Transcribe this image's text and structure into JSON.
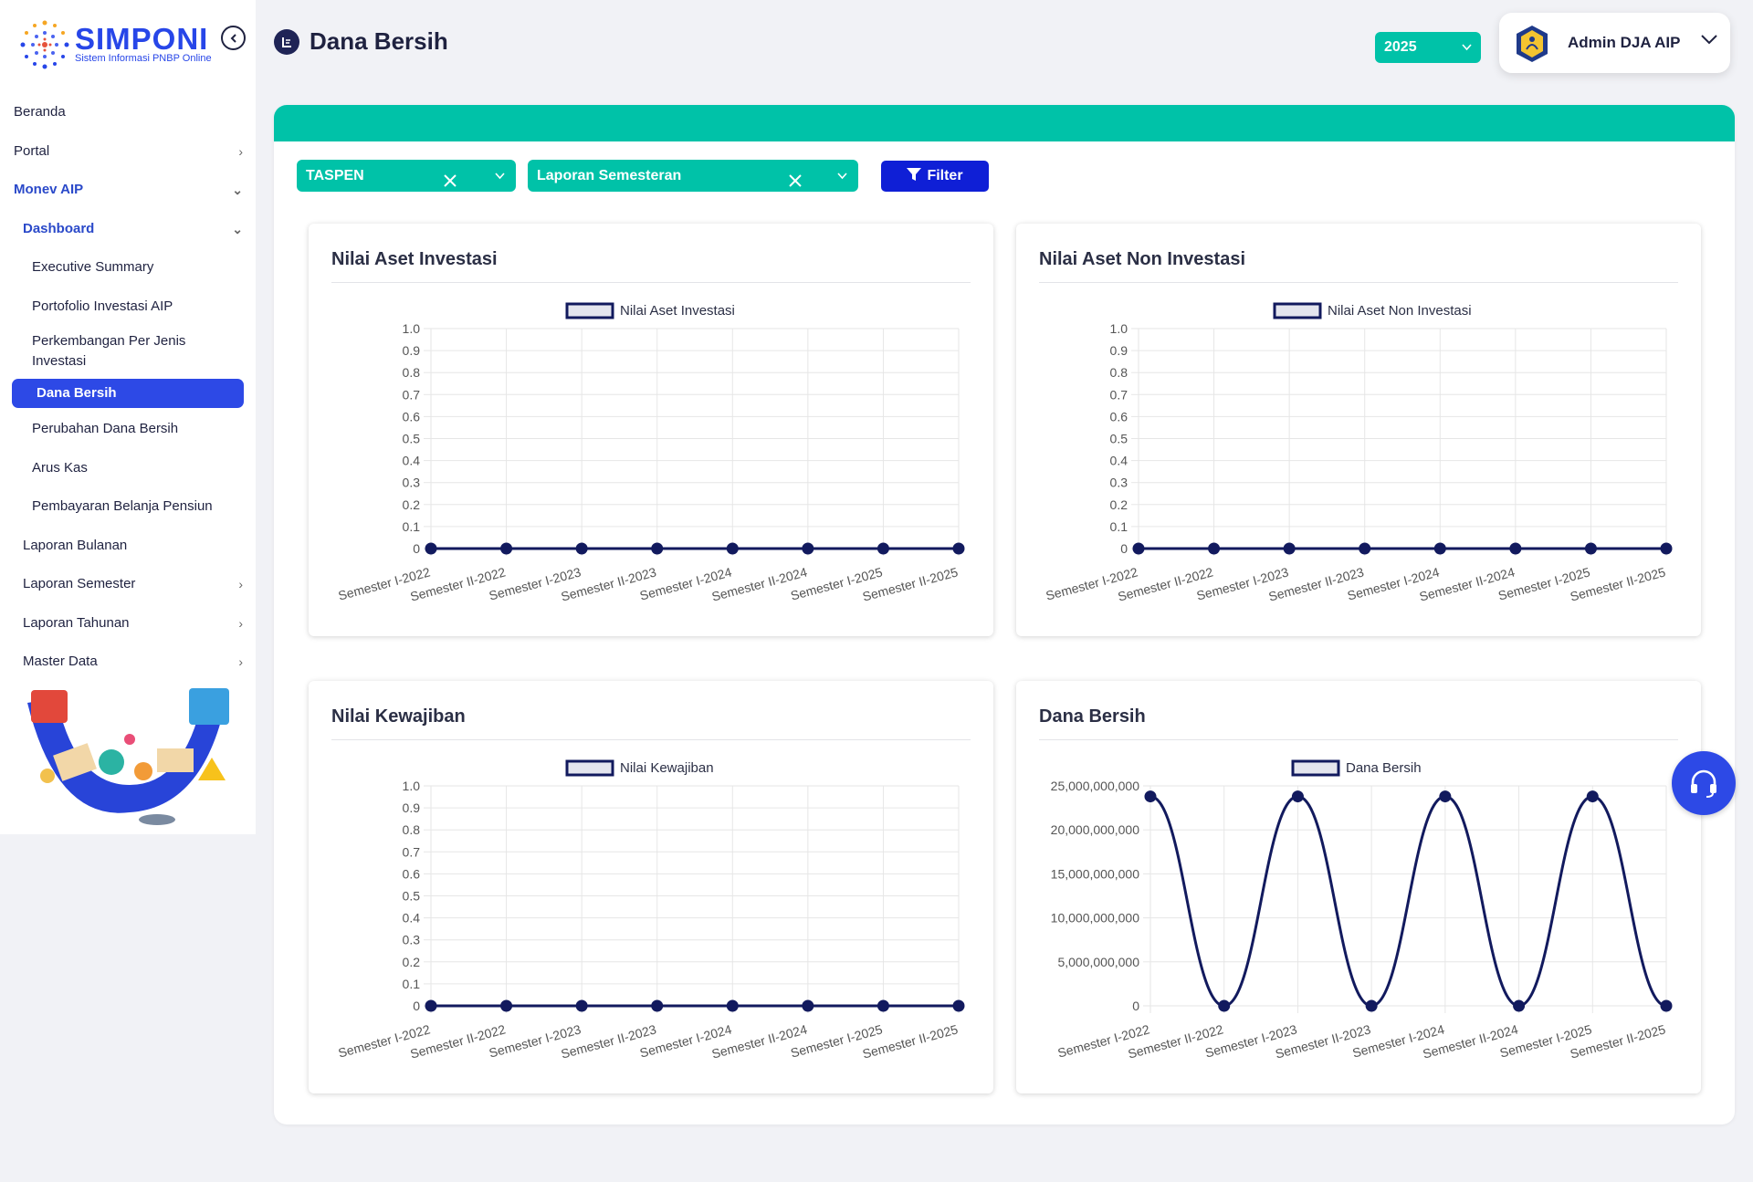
{
  "app": {
    "logo_title": "SIMPONI",
    "logo_subtitle": "Sistem Informasi PNBP Online"
  },
  "sidebar": {
    "items": [
      {
        "label": "Beranda"
      },
      {
        "label": "Portal"
      },
      {
        "label": "Monev AIP"
      },
      {
        "label": "Dashboard"
      },
      {
        "label": "Executive Summary"
      },
      {
        "label": "Portofolio Investasi AIP"
      },
      {
        "label": "Perkembangan Per Jenis Investasi"
      },
      {
        "label": "Dana Bersih"
      },
      {
        "label": "Perubahan Dana Bersih"
      },
      {
        "label": "Arus Kas"
      },
      {
        "label": "Pembayaran Belanja Pensiun"
      },
      {
        "label": "Laporan Bulanan"
      },
      {
        "label": "Laporan Semester"
      },
      {
        "label": "Laporan Tahunan"
      },
      {
        "label": "Master Data"
      }
    ]
  },
  "header": {
    "title": "Dana Bersih",
    "year": "2025",
    "user_name": "Admin DJA AIP"
  },
  "filters": {
    "entity": "TASPEN",
    "report_type": "Laporan Semesteran",
    "filter_label": "Filter"
  },
  "colors": {
    "accent": "#00c2a8",
    "primary": "#2d49e6",
    "line": "#121a5e"
  },
  "chart_data": [
    {
      "type": "line",
      "title": "Nilai Aset Investasi",
      "categories": [
        "Semester I-2022",
        "Semester II-2022",
        "Semester I-2023",
        "Semester II-2023",
        "Semester I-2024",
        "Semester II-2024",
        "Semester I-2025",
        "Semester II-2025"
      ],
      "series": [
        {
          "name": "Nilai Aset Investasi",
          "values": [
            0,
            0,
            0,
            0,
            0,
            0,
            0,
            0
          ]
        }
      ],
      "yticks": [
        "0",
        "0.1",
        "0.2",
        "0.3",
        "0.4",
        "0.5",
        "0.6",
        "0.7",
        "0.8",
        "0.9",
        "1.0"
      ],
      "ylim": [
        0,
        1
      ],
      "legend": "top"
    },
    {
      "type": "line",
      "title": "Nilai Aset Non Investasi",
      "categories": [
        "Semester I-2022",
        "Semester II-2022",
        "Semester I-2023",
        "Semester II-2023",
        "Semester I-2024",
        "Semester II-2024",
        "Semester I-2025",
        "Semester II-2025"
      ],
      "series": [
        {
          "name": "Nilai Aset Non Investasi",
          "values": [
            0,
            0,
            0,
            0,
            0,
            0,
            0,
            0
          ]
        }
      ],
      "yticks": [
        "0",
        "0.1",
        "0.2",
        "0.3",
        "0.4",
        "0.5",
        "0.6",
        "0.7",
        "0.8",
        "0.9",
        "1.0"
      ],
      "ylim": [
        0,
        1
      ],
      "legend": "top"
    },
    {
      "type": "line",
      "title": "Nilai Kewajiban",
      "categories": [
        "Semester I-2022",
        "Semester II-2022",
        "Semester I-2023",
        "Semester II-2023",
        "Semester I-2024",
        "Semester II-2024",
        "Semester I-2025",
        "Semester II-2025"
      ],
      "series": [
        {
          "name": "Nilai Kewajiban",
          "values": [
            0,
            0,
            0,
            0,
            0,
            0,
            0,
            0
          ]
        }
      ],
      "yticks": [
        "0",
        "0.1",
        "0.2",
        "0.3",
        "0.4",
        "0.5",
        "0.6",
        "0.7",
        "0.8",
        "0.9",
        "1.0"
      ],
      "ylim": [
        0,
        1
      ],
      "legend": "top"
    },
    {
      "type": "line",
      "title": "Dana Bersih",
      "categories": [
        "Semester I-2022",
        "Semester II-2022",
        "Semester I-2023",
        "Semester II-2023",
        "Semester I-2024",
        "Semester II-2024",
        "Semester I-2025",
        "Semester II-2025"
      ],
      "series": [
        {
          "name": "Dana Bersih",
          "values": [
            23800000000,
            0,
            23800000000,
            0,
            23800000000,
            0,
            23800000000,
            0
          ]
        }
      ],
      "yticks": [
        "0",
        "5,000,000,000",
        "10,000,000,000",
        "15,000,000,000",
        "20,000,000,000",
        "25,000,000,000"
      ],
      "ylim": [
        0,
        25000000000
      ],
      "legend": "top"
    }
  ]
}
